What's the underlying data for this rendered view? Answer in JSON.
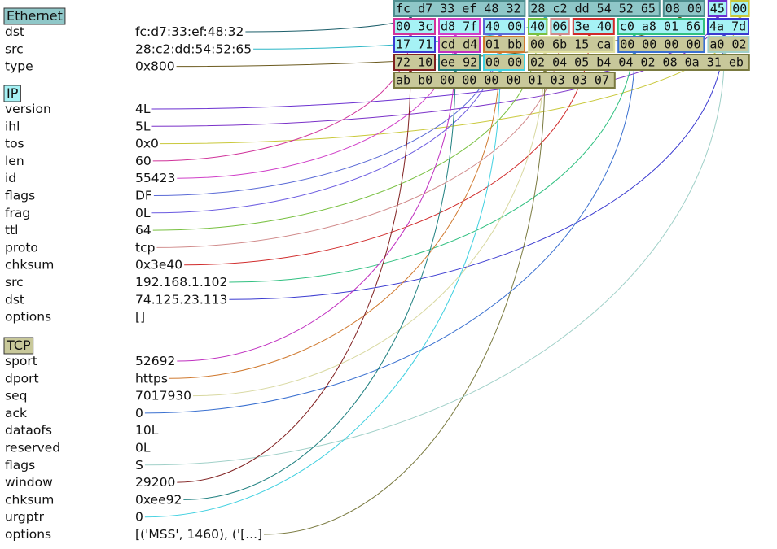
{
  "layers": [
    {
      "name": "Ethernet",
      "color": "#8fc7c8",
      "fields": [
        {
          "name": "dst",
          "value": "fc:d7:33:ef:48:32"
        },
        {
          "name": "src",
          "value": "28:c2:dd:54:52:65"
        },
        {
          "name": "type",
          "value": "0x800"
        }
      ]
    },
    {
      "name": "IP",
      "color": "#a6f2f5",
      "fields": [
        {
          "name": "version",
          "value": "4L"
        },
        {
          "name": "ihl",
          "value": "5L"
        },
        {
          "name": "tos",
          "value": "0x0"
        },
        {
          "name": "len",
          "value": "60"
        },
        {
          "name": "id",
          "value": "55423"
        },
        {
          "name": "flags",
          "value": "DF"
        },
        {
          "name": "frag",
          "value": "0L"
        },
        {
          "name": "ttl",
          "value": "64"
        },
        {
          "name": "proto",
          "value": "tcp"
        },
        {
          "name": "chksum",
          "value": "0x3e40"
        },
        {
          "name": "src",
          "value": "192.168.1.102"
        },
        {
          "name": "dst",
          "value": "74.125.23.113"
        },
        {
          "name": "options",
          "value": "[]"
        }
      ]
    },
    {
      "name": "TCP",
      "color": "#c8c89a",
      "fields": [
        {
          "name": "sport",
          "value": "52692"
        },
        {
          "name": "dport",
          "value": "https"
        },
        {
          "name": "seq",
          "value": "7017930"
        },
        {
          "name": "ack",
          "value": "0"
        },
        {
          "name": "dataofs",
          "value": "10L"
        },
        {
          "name": "reserved",
          "value": "0L"
        },
        {
          "name": "flags",
          "value": "S"
        },
        {
          "name": "window",
          "value": "29200"
        },
        {
          "name": "chksum",
          "value": "0xee92"
        },
        {
          "name": "urgptr",
          "value": "0"
        },
        {
          "name": "options",
          "value": "[('MSS', 1460), ('[...]"
        }
      ]
    }
  ],
  "hex_rows": [
    [
      {
        "text": "fc d7 33 ef 48 32",
        "bg": "#8fc7c8",
        "border": "#4d8d8e"
      },
      {
        "text": "28 c2 dd 54 52 65",
        "bg": "#8fc7c8",
        "border": "#4d8d8e"
      },
      {
        "text": "08 00",
        "bg": "#8fc7c8",
        "border": "#4d8d8e"
      },
      {
        "text": "45",
        "bg": "#a6f2f5",
        "border": "#6a2fd0"
      },
      {
        "text": "00",
        "bg": "#a6f2f5",
        "border": "#c9c83a"
      }
    ],
    [
      {
        "text": "00 3c",
        "bg": "#a6f2f5",
        "border": "#d0339a"
      },
      {
        "text": "d8 7f",
        "bg": "#a6f2f5",
        "border": "#d040c8"
      },
      {
        "text": "40 00",
        "bg": "#a6f2f5",
        "border": "#5a6ad6"
      },
      {
        "text": "40",
        "bg": "#a6f2f5",
        "border": "#78c040"
      },
      {
        "text": "06",
        "bg": "#a6f2f5",
        "border": "#d08a8a"
      },
      {
        "text": "3e 40",
        "bg": "#a6f2f5",
        "border": "#d02a2a"
      },
      {
        "text": "c0 a8 01 66",
        "bg": "#a6f2f5",
        "border": "#30c080"
      },
      {
        "text": "4a 7d",
        "bg": "#a6f2f5",
        "border": "#3a3ad0"
      }
    ],
    [
      {
        "text": "17 71",
        "bg": "#a6f2f5",
        "border": "#3a3ad0"
      },
      {
        "text": "cd d4",
        "bg": "#c8c89a",
        "border": "#c030c0"
      },
      {
        "text": "01 bb",
        "bg": "#c8c89a",
        "border": "#d07a30"
      },
      {
        "text": "00 6b 15 ca",
        "bg": "#c8c89a",
        "border": "#e0e0a0"
      },
      {
        "text": "00 00 00 00",
        "bg": "#c8c89a",
        "border": "#3a70d0"
      },
      {
        "text": "a0 02",
        "bg": "#c8c89a",
        "border": "#a0d0c8"
      }
    ],
    [
      {
        "text": "72 10",
        "bg": "#c8c89a",
        "border": "#802020"
      },
      {
        "text": "ee 92",
        "bg": "#c8c89a",
        "border": "#208080"
      },
      {
        "text": "00 00",
        "bg": "#c8c89a",
        "border": "#40d0e0"
      },
      {
        "text": "02 04 05 b4 04 02 08 0a 31 eb",
        "bg": "#c8c89a",
        "border": "#7a7a40"
      }
    ],
    [
      {
        "text": "ab b0 00 00 00 00 01 03 03 07",
        "bg": "#c8c89a",
        "border": "#7a7a40"
      }
    ]
  ],
  "connections": [
    {
      "layer": 0,
      "field": 0,
      "row": 0,
      "block": 0,
      "color": "#1c5e6a"
    },
    {
      "layer": 0,
      "field": 1,
      "row": 0,
      "block": 1,
      "color": "#2bb6c6"
    },
    {
      "layer": 0,
      "field": 2,
      "row": 0,
      "block": 2,
      "color": "#6b5a1e"
    },
    {
      "layer": 1,
      "field": 0,
      "row": 0,
      "block": 3,
      "color": "#6a2fd0"
    },
    {
      "layer": 1,
      "field": 1,
      "row": 0,
      "block": 3,
      "color": "#7a30c8"
    },
    {
      "layer": 1,
      "field": 2,
      "row": 0,
      "block": 4,
      "color": "#c9c83a"
    },
    {
      "layer": 1,
      "field": 3,
      "row": 1,
      "block": 0,
      "color": "#d0339a"
    },
    {
      "layer": 1,
      "field": 4,
      "row": 1,
      "block": 1,
      "color": "#d040c8"
    },
    {
      "layer": 1,
      "field": 5,
      "row": 1,
      "block": 2,
      "color": "#5a6ad6"
    },
    {
      "layer": 1,
      "field": 6,
      "row": 1,
      "block": 2,
      "color": "#6a5ae0"
    },
    {
      "layer": 1,
      "field": 7,
      "row": 1,
      "block": 3,
      "color": "#78c040"
    },
    {
      "layer": 1,
      "field": 8,
      "row": 1,
      "block": 4,
      "color": "#d08a8a"
    },
    {
      "layer": 1,
      "field": 9,
      "row": 1,
      "block": 5,
      "color": "#d02a2a"
    },
    {
      "layer": 1,
      "field": 10,
      "row": 1,
      "block": 6,
      "color": "#30c080"
    },
    {
      "layer": 1,
      "field": 11,
      "row": 1,
      "block": 7,
      "color": "#3a3ad0"
    },
    {
      "layer": 2,
      "field": 0,
      "row": 2,
      "block": 1,
      "color": "#c030c0"
    },
    {
      "layer": 2,
      "field": 1,
      "row": 2,
      "block": 2,
      "color": "#d07a30"
    },
    {
      "layer": 2,
      "field": 2,
      "row": 2,
      "block": 3,
      "color": "#d8d8a0"
    },
    {
      "layer": 2,
      "field": 3,
      "row": 2,
      "block": 4,
      "color": "#3a70d0"
    },
    {
      "layer": 2,
      "field": 6,
      "row": 2,
      "block": 5,
      "color": "#a0d0c8"
    },
    {
      "layer": 2,
      "field": 7,
      "row": 3,
      "block": 0,
      "color": "#802020"
    },
    {
      "layer": 2,
      "field": 8,
      "row": 3,
      "block": 1,
      "color": "#208080"
    },
    {
      "layer": 2,
      "field": 9,
      "row": 3,
      "block": 2,
      "color": "#40d0e0"
    },
    {
      "layer": 2,
      "field": 10,
      "row": 3,
      "block": 3,
      "color": "#7a7a40"
    }
  ]
}
